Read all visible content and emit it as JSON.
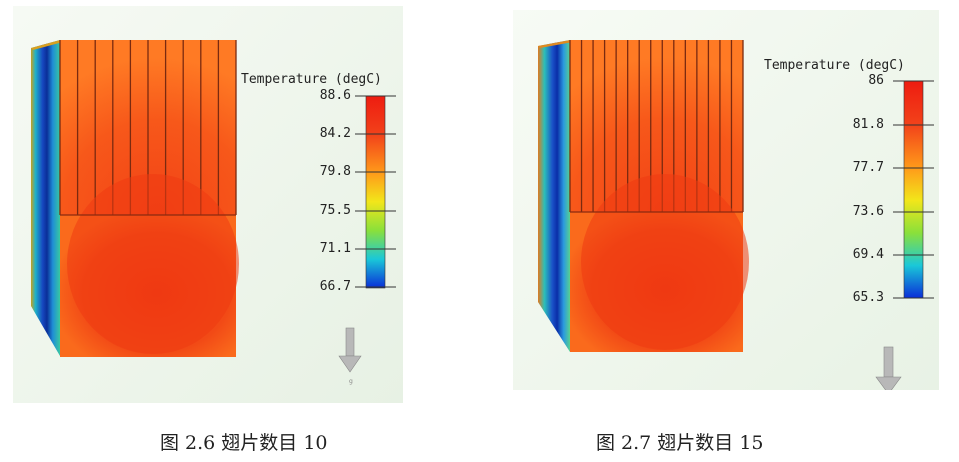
{
  "figures": [
    {
      "caption": "图 2.6  翅片数目 10",
      "legend_title": "Temperature (degC)",
      "ticks": [
        "88.6",
        "84.2",
        "79.8",
        "75.5",
        "71.1",
        "66.7"
      ],
      "fin_count": 10,
      "gravity_label": "g"
    },
    {
      "caption": "图 2.7  翅片数目 15",
      "legend_title": "Temperature (degC)",
      "ticks": [
        "86",
        "81.8",
        "77.7",
        "73.6",
        "69.4",
        "65.3"
      ],
      "fin_count": 15
    }
  ],
  "colors": {
    "panel_bg": "#eef5ec",
    "hot": "#f23a14",
    "warm": "#ff6a1e",
    "cold": "#0a2ea8"
  }
}
